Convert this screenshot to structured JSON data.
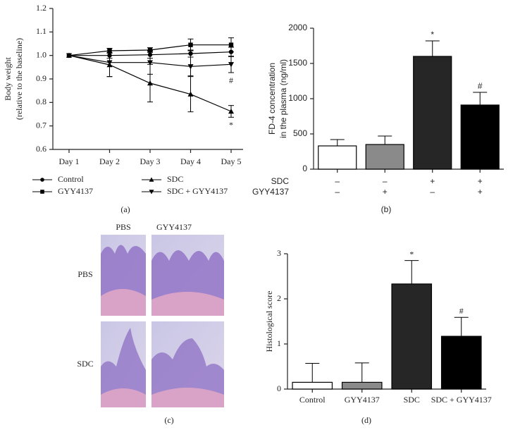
{
  "chart_data": [
    {
      "type": "line",
      "panel": "(a)",
      "ylabel": [
        "Body weight",
        "(relative to the baseline)"
      ],
      "categories": [
        "Day 1",
        "Day 2",
        "Day 3",
        "Day 4",
        "Day 5"
      ],
      "ylim": [
        0.6,
        1.2
      ],
      "yticks": [
        {
          "value": 0.6,
          "label": "0.6"
        },
        {
          "value": 0.7,
          "label": "0.7"
        },
        {
          "value": 0.8,
          "label": "0.8"
        },
        {
          "value": 0.9,
          "label": "0.9"
        },
        {
          "value": 1,
          "label": "1.0"
        },
        {
          "value": 1.1,
          "label": "1.1"
        },
        {
          "value": 1.2,
          "label": "1.2"
        }
      ],
      "error_direction": "both",
      "series": [
        {
          "name": "Control",
          "color": "#000000",
          "marker": "circle",
          "values": [
            1.0,
            1.0,
            1.003,
            1.008,
            1.015
          ],
          "errors": [
            0,
            0.012,
            0.015,
            0.015,
            0.02
          ],
          "annotations": [
            null,
            null,
            null,
            null,
            null
          ]
        },
        {
          "name": "GYY4137",
          "color": "#000000",
          "marker": "square",
          "values": [
            1.0,
            1.02,
            1.023,
            1.045,
            1.045
          ],
          "errors": [
            0,
            0.01,
            0.01,
            0.025,
            0.03
          ],
          "annotations": [
            null,
            null,
            null,
            null,
            null
          ]
        },
        {
          "name": "SDC",
          "color": "#000000",
          "marker": "triangle-up",
          "values": [
            1.0,
            0.96,
            0.882,
            0.835,
            0.762
          ],
          "errors": [
            0,
            0.05,
            0.08,
            0.075,
            0.025
          ],
          "annotations": [
            null,
            null,
            null,
            null,
            "*"
          ]
        },
        {
          "name": "SDC + GYY4137",
          "color": "#000000",
          "marker": "triangle-down",
          "values": [
            1.0,
            0.97,
            0.97,
            0.953,
            0.962
          ],
          "errors": [
            0,
            0.06,
            0.05,
            0.04,
            0.035
          ],
          "annotations": [
            null,
            null,
            null,
            null,
            "#"
          ]
        }
      ]
    },
    {
      "type": "bar",
      "panel": "(b)",
      "ylabel": [
        "FD-4 concentration",
        "in the plasma (ng/ml)"
      ],
      "values": [
        330,
        350,
        1600,
        910
      ],
      "errors": [
        90,
        120,
        220,
        180
      ],
      "colors": [
        "#ffffff",
        "#8a8a8a",
        "#262626",
        "#000000"
      ],
      "annotations": [
        null,
        null,
        "*",
        "#"
      ],
      "rows": [
        {
          "label": "SDC",
          "values": [
            "–",
            "–",
            "+",
            "+"
          ]
        },
        {
          "label": "GYY4137",
          "values": [
            "–",
            "+",
            "–",
            "+"
          ]
        }
      ],
      "ylim": [
        0,
        2000
      ],
      "yticks": [
        0,
        500,
        1000,
        1500,
        2000
      ],
      "error_direction": "up"
    },
    {
      "type": "bar",
      "panel": "(d)",
      "ylabel": [
        "Histological score"
      ],
      "categories": [
        "Control",
        "GYY4137",
        "SDC",
        "SDC + GYY4137"
      ],
      "values": [
        0.15,
        0.15,
        2.33,
        1.17
      ],
      "errors": [
        0.42,
        0.43,
        0.52,
        0.42
      ],
      "colors": [
        "#ffffff",
        "#8a8a8a",
        "#262626",
        "#000000"
      ],
      "annotations": [
        null,
        null,
        "*",
        "#"
      ],
      "ylim": [
        0,
        3
      ],
      "yticks": [
        0,
        1,
        2,
        3
      ],
      "error_direction": "up"
    }
  ],
  "image_panel": {
    "panel": "(c)",
    "columns": [
      "PBS",
      "GYY4137"
    ],
    "rows": [
      "PBS",
      "SDC"
    ]
  }
}
